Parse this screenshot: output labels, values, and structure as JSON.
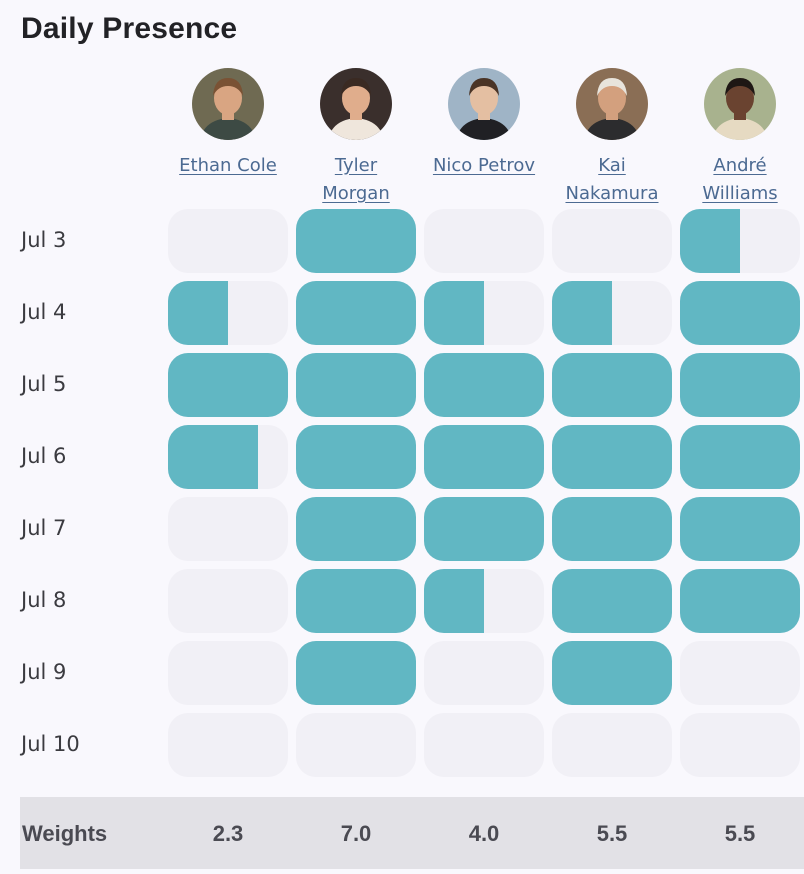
{
  "title": "Daily Presence",
  "people": [
    {
      "name_line1": "Ethan Cole",
      "name_line2": "",
      "avatar": "avatar-ethan-cole"
    },
    {
      "name_line1": "Tyler",
      "name_line2": "Morgan",
      "avatar": "avatar-tyler-morgan"
    },
    {
      "name_line1": "Nico Petrov",
      "name_line2": "",
      "avatar": "avatar-nico-petrov"
    },
    {
      "name_line1": "Kai",
      "name_line2": "Nakamura",
      "avatar": "avatar-kai-nakamura"
    },
    {
      "name_line1": "André",
      "name_line2": "Williams",
      "avatar": "avatar-andre-williams"
    }
  ],
  "days": [
    "Jul 3",
    "Jul 4",
    "Jul 5",
    "Jul 6",
    "Jul 7",
    "Jul 8",
    "Jul 9",
    "Jul 10"
  ],
  "presence": [
    [
      0,
      1,
      0,
      0,
      0.5
    ],
    [
      0.5,
      1,
      0.5,
      0.5,
      1
    ],
    [
      1,
      1,
      1,
      1,
      1
    ],
    [
      0.75,
      1,
      1,
      1,
      1
    ],
    [
      0,
      1,
      1,
      1,
      1
    ],
    [
      0,
      1,
      0.5,
      1,
      1
    ],
    [
      0,
      1,
      0,
      1,
      0
    ],
    [
      0,
      0,
      0,
      0,
      0
    ]
  ],
  "weights_label": "Weights",
  "weights": [
    "2.3",
    "7.0",
    "4.0",
    "5.5",
    "5.5"
  ],
  "colors": {
    "present": "#61b7c3",
    "empty": "#f1f0f6",
    "link": "#4c6a92",
    "footer": "#e2e1e6"
  }
}
